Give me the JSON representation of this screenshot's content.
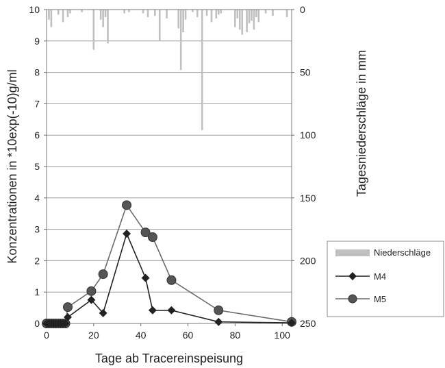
{
  "chart_data": {
    "type": "line",
    "xlabel": "Tage ab Tracereinspeisung",
    "ylabel_left": "Konzentrationen in *10exp(-10)g/ml",
    "ylabel_right": "Tagesniederschläge in mm",
    "xlim": [
      0,
      104
    ],
    "ylim_left": [
      0,
      10
    ],
    "ylim_right": [
      0,
      250
    ],
    "right_axis_inverted": true,
    "x_ticks": [
      0,
      20,
      40,
      60,
      80,
      100
    ],
    "y_ticks_left": [
      0,
      1,
      2,
      3,
      4,
      5,
      6,
      7,
      8,
      9,
      10
    ],
    "y_ticks_right": [
      0,
      50,
      100,
      150,
      200,
      250
    ],
    "grid": "horizontal",
    "legend_position": "right",
    "colors": {
      "niederschlaege": "#c0c0c0",
      "m4": "#222222",
      "m5": "#555555",
      "m5_line": "#6a6a6a"
    },
    "series": [
      {
        "name": "M4",
        "marker": "diamond",
        "x": [
          0,
          1,
          2,
          3,
          4,
          5,
          6,
          7,
          8,
          9,
          19,
          24,
          34,
          42,
          45,
          53,
          73,
          104
        ],
        "y": [
          0,
          0,
          0,
          0,
          0,
          0,
          0,
          0,
          0,
          0.2,
          0.75,
          0.33,
          2.86,
          1.45,
          0.42,
          0.42,
          0.05,
          0.02
        ]
      },
      {
        "name": "M5",
        "marker": "circle",
        "x": [
          0,
          1,
          2,
          3,
          4,
          5,
          6,
          7,
          8,
          9,
          19,
          24,
          34,
          42,
          45,
          53,
          73,
          104
        ],
        "y": [
          0,
          0,
          0,
          0,
          0,
          0,
          0,
          0,
          0,
          0.52,
          1.03,
          1.57,
          3.77,
          2.9,
          2.75,
          1.38,
          0.42,
          0.05
        ]
      },
      {
        "name": "Niederschläge",
        "type": "bar",
        "axis": "right",
        "x": [
          1,
          2,
          5,
          7,
          9,
          10,
          15,
          20,
          23,
          24,
          25,
          26,
          33,
          35,
          41,
          43,
          46,
          48,
          51,
          56,
          57,
          58,
          59,
          62,
          64,
          66,
          68,
          70,
          72,
          73,
          74,
          80,
          81,
          82,
          83,
          85,
          86,
          87,
          88,
          89,
          90,
          93,
          96,
          102
        ],
        "values": [
          8,
          14,
          4,
          10,
          6,
          3,
          2,
          32,
          8,
          14,
          6,
          27,
          3,
          2,
          3,
          6,
          5,
          25,
          7,
          15,
          48,
          18,
          8,
          2,
          6,
          96,
          5,
          10,
          7,
          4,
          3,
          14,
          7,
          16,
          20,
          18,
          11,
          9,
          16,
          6,
          10,
          3,
          5,
          6
        ]
      }
    ]
  }
}
